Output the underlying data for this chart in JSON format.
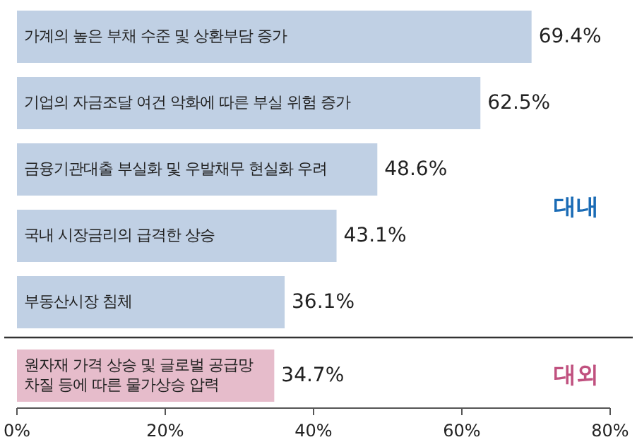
{
  "chart_data": {
    "type": "bar",
    "orientation": "horizontal",
    "categories": [
      "가계의 높은 부채 수준 및 상환부담 증가",
      "기업의 자금조달 여건 악화에 따른 부실 위험 증가",
      "금융기관대출 부실화 및 우발채무 현실화 우려",
      "국내 시장금리의 급격한 상승",
      "부동산시장 침체",
      "원자재 가격 상승 및 글로벌 공급망\n차질 등에 따른 물가상승 압력"
    ],
    "values": [
      69.4,
      62.5,
      48.6,
      43.1,
      36.1,
      34.7
    ],
    "value_labels": [
      "69.4%",
      "62.5%",
      "48.6%",
      "43.1%",
      "36.1%",
      "34.7%"
    ],
    "colors": [
      "#c0d0e4",
      "#c0d0e4",
      "#c0d0e4",
      "#c0d0e4",
      "#c0d0e4",
      "#e6bccb"
    ],
    "xlim": [
      0,
      80
    ],
    "xticks": [
      {
        "value": 0,
        "label": "0%"
      },
      {
        "value": 20,
        "label": "20%"
      },
      {
        "value": 40,
        "label": "40%"
      },
      {
        "value": 60,
        "label": "60%"
      },
      {
        "value": 80,
        "label": "80%"
      }
    ],
    "annotations": [
      "대내",
      "대외"
    ]
  }
}
